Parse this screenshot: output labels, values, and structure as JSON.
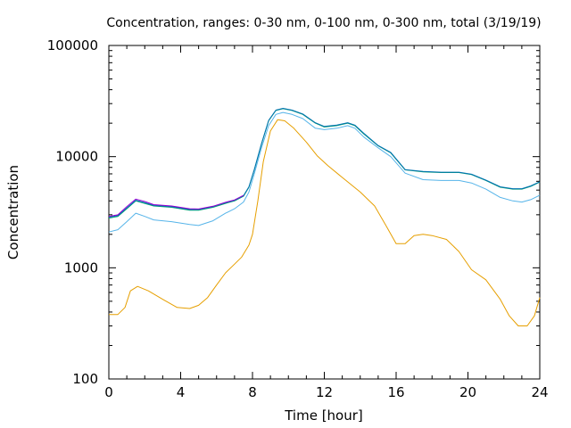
{
  "chart_data": {
    "type": "line",
    "title": "Concentration, ranges: 0-30 nm, 0-100 nm, 0-300 nm, total (3/19/19)",
    "xlabel": "Time [hour]",
    "ylabel": "Concentration",
    "xlim": [
      0,
      24
    ],
    "ylim": [
      100,
      100000
    ],
    "yscale": "log",
    "grid": false,
    "legend": "none",
    "x_ticks": [
      0,
      4,
      8,
      12,
      16,
      20,
      24
    ],
    "x_tick_labels": [
      "0",
      "4",
      "8",
      "12",
      "16",
      "20",
      "24"
    ],
    "y_ticks": [
      100,
      1000,
      10000,
      100000
    ],
    "y_tick_labels": [
      "100",
      "1000",
      "10000",
      "100000"
    ],
    "series": [
      {
        "color": "#e69f00",
        "x": [
          0,
          0.5,
          0.9,
          1.2,
          1.6,
          2.2,
          3.0,
          3.8,
          4.5,
          5.0,
          5.5,
          6.0,
          6.5,
          7.0,
          7.4,
          7.8,
          8.0,
          8.3,
          8.6,
          9.0,
          9.4,
          9.8,
          10.3,
          11.0,
          11.6,
          12.2,
          13.0,
          14.0,
          14.8,
          15.5,
          16.0,
          16.5,
          17.0,
          17.5,
          18.0,
          18.8,
          19.5,
          20.2,
          21.0,
          21.8,
          22.3,
          22.8,
          23.3,
          23.7,
          24.0
        ],
        "values": [
          380,
          380,
          440,
          620,
          680,
          620,
          520,
          440,
          430,
          460,
          540,
          700,
          900,
          1080,
          1250,
          1600,
          2000,
          4000,
          9000,
          17000,
          21500,
          21000,
          18000,
          13500,
          10200,
          8300,
          6500,
          4800,
          3600,
          2300,
          1650,
          1650,
          1950,
          2000,
          1950,
          1800,
          1400,
          960,
          780,
          520,
          370,
          300,
          300,
          370,
          540
        ]
      },
      {
        "color": "#56b4e9",
        "x": [
          0,
          0.5,
          1.0,
          1.5,
          2.0,
          2.5,
          3.5,
          4.5,
          5.0,
          5.8,
          6.5,
          7.0,
          7.5,
          7.8,
          8.1,
          8.5,
          8.9,
          9.3,
          9.7,
          10.2,
          10.8,
          11.5,
          12.0,
          12.7,
          13.3,
          13.7,
          14.2,
          15.0,
          15.7,
          16.5,
          17.5,
          18.5,
          19.5,
          20.2,
          21.0,
          21.8,
          22.5,
          23.0,
          23.5,
          24.0
        ],
        "values": [
          2100,
          2200,
          2600,
          3100,
          2900,
          2700,
          2600,
          2450,
          2400,
          2650,
          3100,
          3400,
          3900,
          4800,
          7000,
          12000,
          19000,
          24000,
          25000,
          24000,
          22000,
          18000,
          17500,
          18000,
          19000,
          18000,
          15000,
          12000,
          10000,
          7100,
          6200,
          6100,
          6100,
          5800,
          5100,
          4300,
          4000,
          3900,
          4100,
          4500
        ]
      },
      {
        "color": "#009e73",
        "x": [
          0,
          0.5,
          1.0,
          1.5,
          2.0,
          2.5,
          3.5,
          4.5,
          5.0,
          5.8,
          6.5,
          7.0,
          7.5,
          7.8,
          8.1,
          8.5,
          8.9,
          9.3,
          9.7,
          10.2,
          10.8,
          11.5,
          12.0,
          12.7,
          13.3,
          13.7,
          14.2,
          15.0,
          15.7,
          16.5,
          17.5,
          18.5,
          19.5,
          20.2,
          21.0,
          21.8,
          22.5,
          23.0,
          23.5,
          24.0
        ],
        "values": [
          2800,
          2900,
          3400,
          4000,
          3800,
          3600,
          3500,
          3300,
          3300,
          3500,
          3800,
          4000,
          4400,
          5300,
          7600,
          13000,
          21000,
          26000,
          27000,
          26000,
          24000,
          20000,
          18500,
          19000,
          20000,
          19000,
          16000,
          12500,
          10800,
          7600,
          7300,
          7200,
          7200,
          6900,
          6100,
          5300,
          5100,
          5100,
          5400,
          5900
        ]
      },
      {
        "color": "#0072b2",
        "x": [
          0,
          0.5,
          1.0,
          1.5,
          2.0,
          2.5,
          3.5,
          4.5,
          5.0,
          5.8,
          6.5,
          7.0,
          7.5,
          7.8,
          8.1,
          8.5,
          8.9,
          9.3,
          9.7,
          10.2,
          10.8,
          11.5,
          12.0,
          12.7,
          13.3,
          13.7,
          14.2,
          15.0,
          15.7,
          16.5,
          17.5,
          18.5,
          19.5,
          20.2,
          21.0,
          21.8,
          22.5,
          23.0,
          23.5,
          24.0
        ],
        "values": [
          2850,
          2950,
          3450,
          4050,
          3850,
          3650,
          3550,
          3350,
          3350,
          3550,
          3850,
          4050,
          4450,
          5350,
          7650,
          13100,
          21200,
          26200,
          27200,
          26200,
          24200,
          20200,
          18700,
          19200,
          20200,
          19200,
          16200,
          12600,
          10900,
          7650,
          7350,
          7250,
          7250,
          6950,
          6150,
          5350,
          5150,
          5150,
          5450,
          5950
        ]
      },
      {
        "color": "#9400d3",
        "x": [
          0,
          0.5,
          1.0,
          1.5,
          2.0,
          2.5,
          3.5,
          4.5,
          5.0,
          5.8,
          6.5,
          7.0,
          7.5
        ],
        "values": [
          2900,
          3000,
          3550,
          4150,
          3950,
          3700,
          3600,
          3400,
          3380,
          3580,
          3880,
          4080,
          4480
        ]
      }
    ]
  }
}
